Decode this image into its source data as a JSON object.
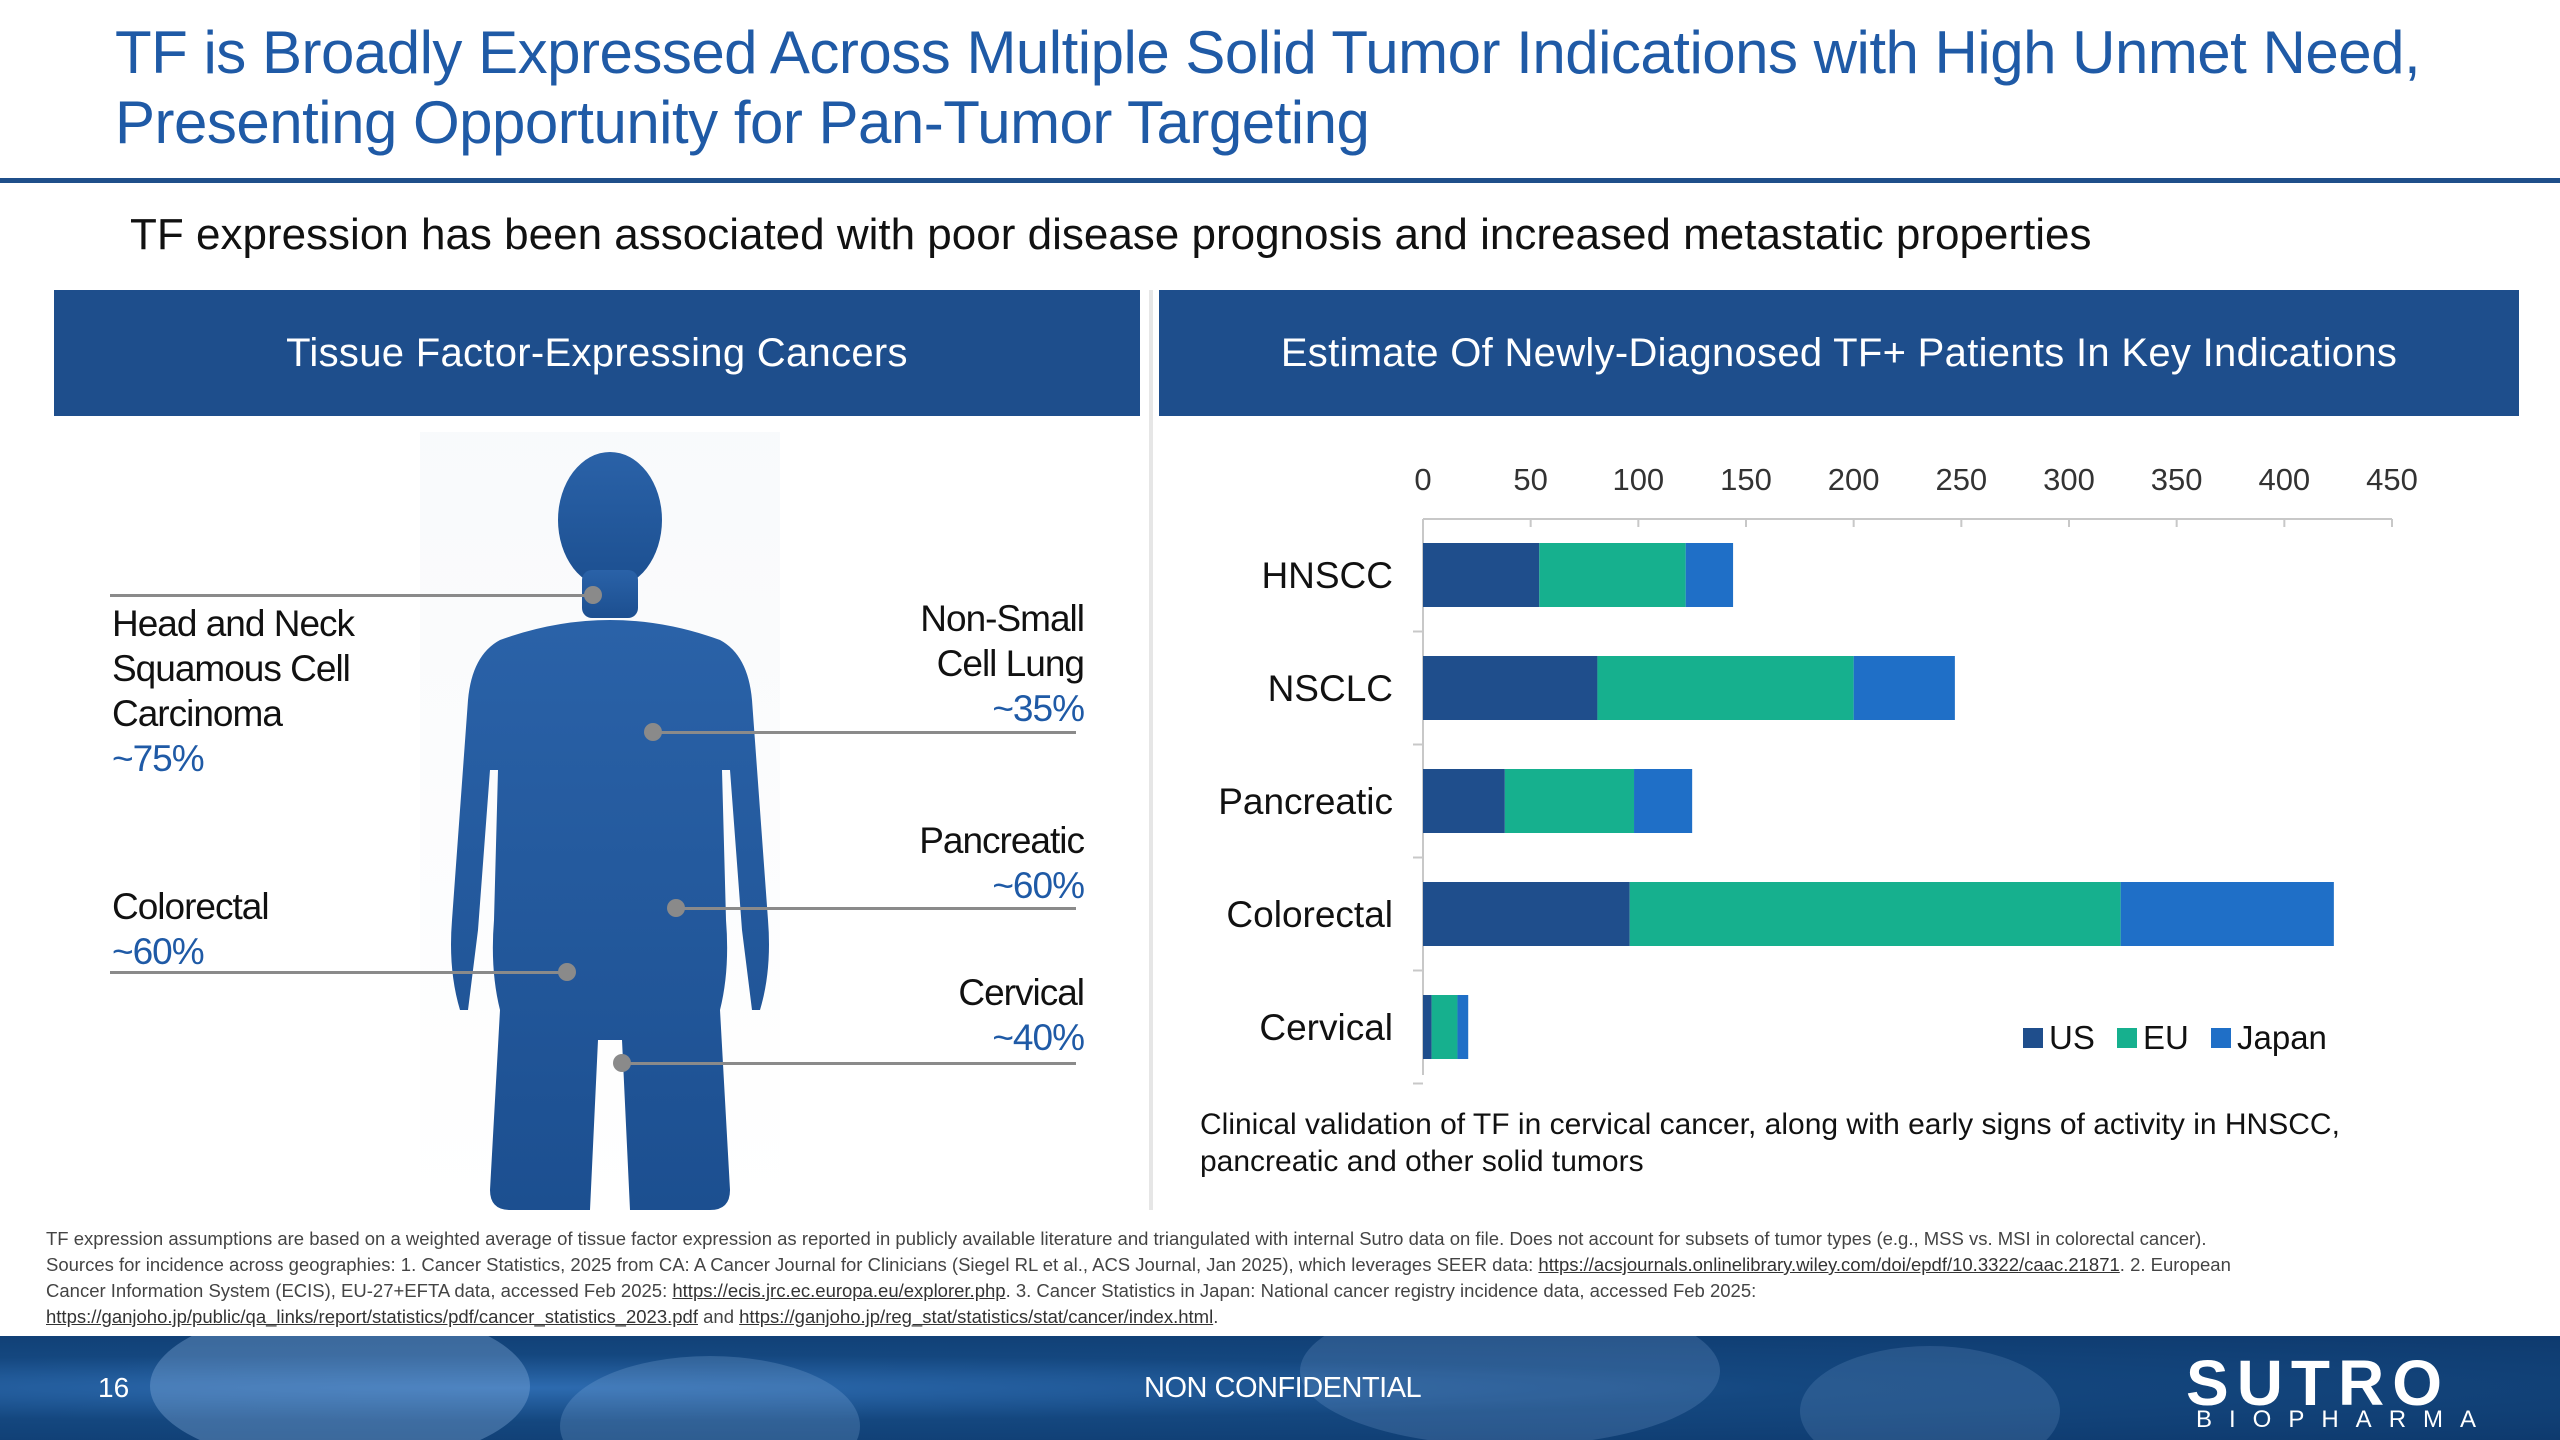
{
  "title": "TF is Broadly Expressed Across Multiple Solid Tumor Indications with High Unmet Need, Presenting Opportunity for Pan-Tumor Targeting",
  "subtitle": "TF expression has been associated with poor disease prognosis and increased metastatic properties",
  "left_panel": {
    "header": "Tissue Factor-Expressing Cancers",
    "labels": [
      {
        "name": "Head and Neck Squamous Cell Carcinoma",
        "lines": [
          "Head and Neck",
          "Squamous Cell",
          "Carcinoma"
        ],
        "pct": "~75%"
      },
      {
        "name": "Colorectal",
        "lines": [
          "Colorectal"
        ],
        "pct": "~60%"
      },
      {
        "name": "Non-Small Cell Lung",
        "lines": [
          "Non-Small",
          "Cell Lung"
        ],
        "pct": "~35%"
      },
      {
        "name": "Pancreatic",
        "lines": [
          "Pancreatic"
        ],
        "pct": "~60%"
      },
      {
        "name": "Cervical",
        "lines": [
          "Cervical"
        ],
        "pct": "~40%"
      }
    ]
  },
  "right_panel": {
    "header": "Estimate Of Newly-Diagnosed TF+ Patients In Key Indications",
    "note": "Clinical validation of TF in cervical cancer, along with early signs of activity in HNSCC, pancreatic and other solid tumors"
  },
  "chart_data": {
    "type": "bar",
    "orientation": "horizontal",
    "stacked": true,
    "categories": [
      "HNSCC",
      "NSCLC",
      "Pancreatic",
      "Colorectal",
      "Cervical"
    ],
    "series": [
      {
        "name": "US",
        "color": "#1f4e8c",
        "values": [
          54,
          81,
          38,
          96,
          4
        ]
      },
      {
        "name": "EU",
        "color": "#16b08e",
        "values": [
          68,
          119,
          60,
          228,
          12
        ]
      },
      {
        "name": "Japan",
        "color": "#1f6fc7",
        "values": [
          22,
          47,
          27,
          99,
          5
        ]
      }
    ],
    "xlim": [
      0,
      450
    ],
    "xticks": [
      0,
      50,
      100,
      150,
      200,
      250,
      300,
      350,
      400,
      450
    ],
    "axis_position": "top",
    "legend_position": "bottom-right",
    "grid": false
  },
  "footnote": {
    "line1": "TF expression assumptions are based on a weighted average of tissue factor expression as reported in publicly available literature and triangulated with internal Sutro data on file. Does not account for subsets of tumor types (e.g., MSS vs. MSI in colorectal cancer).",
    "line2_pre": "Sources for incidence across geographies: 1. Cancer Statistics, 2025 from CA: A Cancer Journal for Clinicians (Siegel RL et al., ACS Journal, Jan 2025), which leverages SEER data: ",
    "link1": "https://acsjournals.onlinelibrary.wiley.com/doi/epdf/10.3322/caac.21871",
    "line2_post": ". 2. European",
    "line3_pre": "Cancer Information System (ECIS), EU-27+EFTA data, accessed Feb 2025: ",
    "link2": "https://ecis.jrc.ec.europa.eu/explorer.php",
    "line3_post": ". 3. Cancer Statistics in Japan: National cancer registry incidence data, accessed Feb 2025:",
    "link3": "https://ganjoho.jp/public/qa_links/report/statistics/pdf/cancer_statistics_2023.pdf",
    "and": " and ",
    "link4": "https://ganjoho.jp/reg_stat/statistics/stat/cancer/index.html",
    "end": "."
  },
  "footer": {
    "page_number": "16",
    "confidentiality": "NON CONFIDENTIAL",
    "logo_wordmark": "SUTRO",
    "logo_sub": "BIOPHARMA"
  }
}
